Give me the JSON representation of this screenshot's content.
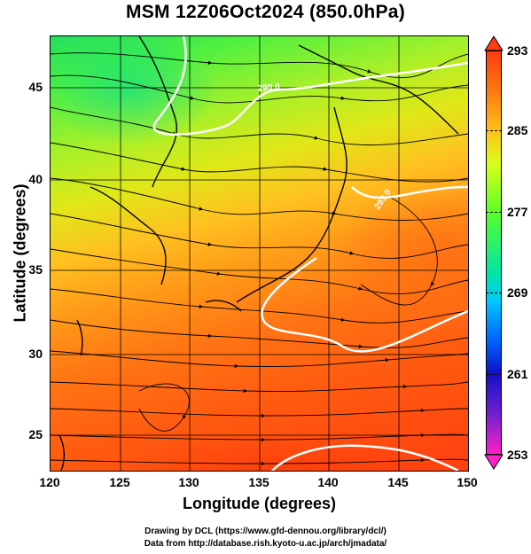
{
  "title": "MSM 12Z06Oct2024 (850.0hPa)",
  "x_axis": {
    "label": "Longitude (degrees)",
    "ticks": [
      "120",
      "125",
      "130",
      "135",
      "140",
      "145",
      "150"
    ],
    "range": [
      120,
      150
    ]
  },
  "y_axis": {
    "label": "Latitude (degrees)",
    "ticks": [
      "25",
      "30",
      "35",
      "40",
      "45"
    ],
    "range": [
      22.5,
      47.5
    ]
  },
  "colorbar": {
    "ticks": [
      "293",
      "285",
      "277",
      "269",
      "261",
      "253"
    ],
    "range": [
      253,
      293
    ],
    "colors": [
      "#ff3b10",
      "#ffc21a",
      "#59ff28",
      "#00c8ff",
      "#1010c8",
      "#ff20c8"
    ]
  },
  "contour_labels": [
    "293.0",
    "290.0"
  ],
  "footer": {
    "line1": "Drawing by DCL (https://www.gfd-dennou.org/library/dcl/)",
    "line2": "Data from http://database.rish.kyoto-u.ac.jp/arch/jmadata/"
  }
}
